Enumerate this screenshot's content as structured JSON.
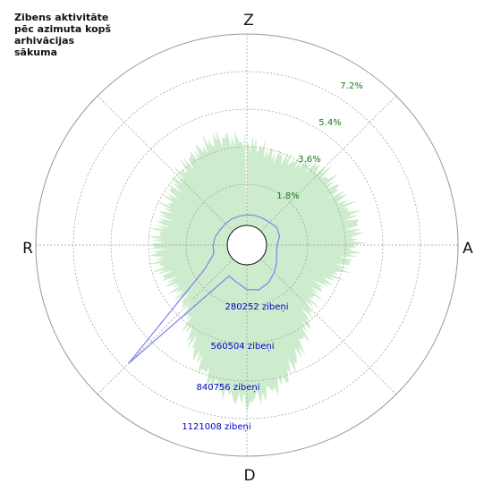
{
  "title": "Zibens aktivitāte pēc azimuta kopš arhivācijas sākuma",
  "colors": {
    "fill": "#cdeccd",
    "line": "#8080ee",
    "ring": "#999999",
    "pct_label": "#1a7a1a",
    "count_label": "#0000cc"
  },
  "chart_data": {
    "type": "polar-area",
    "directions": {
      "north": "Z",
      "east": "A",
      "south": "D",
      "west": "R"
    },
    "percent_rings": {
      "values": [
        1.8,
        3.6,
        5.4,
        7.2
      ],
      "labels": [
        "1.8%",
        "3.6%",
        "5.4%",
        "7.2%"
      ]
    },
    "count_rings": {
      "values": [
        280252,
        560504,
        840756,
        1121008
      ],
      "labels": [
        "280252 zibeņi",
        "560504 zibeņi",
        "840756 zibeņi",
        "1121008 zibeņi"
      ]
    },
    "percent_series": {
      "azimuth_deg": [
        0,
        15,
        30,
        45,
        60,
        75,
        90,
        105,
        120,
        135,
        150,
        165,
        180,
        195,
        210,
        225,
        240,
        255,
        270,
        285,
        300,
        315,
        330,
        345
      ],
      "percent": [
        3.9,
        3.5,
        3.6,
        4.1,
        4.0,
        4.3,
        4.2,
        3.7,
        3.0,
        3.2,
        4.3,
        5.7,
        6.5,
        5.7,
        4.3,
        3.1,
        3.0,
        3.3,
        3.4,
        3.2,
        3.3,
        3.6,
        4.0,
        4.3
      ]
    },
    "count_series": {
      "azimuth_deg": [
        0,
        15,
        30,
        45,
        60,
        75,
        90,
        105,
        120,
        135,
        150,
        165,
        180,
        195,
        210,
        225,
        240,
        255,
        270,
        285,
        300,
        315,
        330,
        345
      ],
      "count": [
        69000,
        72000,
        75000,
        81000,
        99000,
        92000,
        69000,
        72000,
        96000,
        124000,
        155000,
        174000,
        161000,
        124000,
        105000,
        965000,
        192000,
        96000,
        92000,
        85000,
        72000,
        69000,
        69000,
        67000
      ]
    }
  }
}
